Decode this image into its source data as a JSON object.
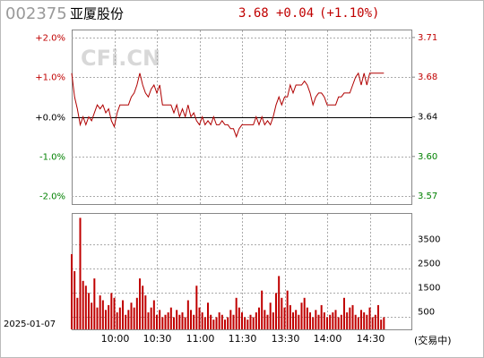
{
  "header": {
    "code": "002375",
    "name": "亚厦股份",
    "price": "3.68",
    "change": "+0.04",
    "change_pct": "(+1.10%)",
    "watermark": "CFi.CN",
    "date": "2025-01-07",
    "status": "(交易中)"
  },
  "chart_data": [
    {
      "type": "line",
      "color": "#b00000",
      "grid": true,
      "xlim": [
        0,
        120
      ],
      "xticks": [
        {
          "value": 15,
          "label": "10:00"
        },
        {
          "value": 30,
          "label": "10:30"
        },
        {
          "value": 45,
          "label": "11:00"
        },
        {
          "value": 60,
          "label": "11:30"
        },
        {
          "value": 75,
          "label": "13:30"
        },
        {
          "value": 90,
          "label": "14:00"
        },
        {
          "value": 105,
          "label": "14:30"
        }
      ],
      "ylim": [
        -2.2,
        2.2
      ],
      "yticks": [
        {
          "value": 2,
          "label": "+2.0%"
        },
        {
          "value": 1,
          "label": "+1.0%"
        },
        {
          "value": 0,
          "label": "+0.0%"
        },
        {
          "value": -1,
          "label": "-1.0%"
        },
        {
          "value": -2,
          "label": "-2.0%"
        }
      ],
      "y2lim": [
        3.5599,
        3.7201
      ],
      "y2ticks": [
        {
          "value": 3.7128,
          "label": "3.71"
        },
        {
          "value": 3.6764,
          "label": "3.68"
        },
        3.64,
        {
          "value": 3.6036,
          "label": "3.60"
        },
        {
          "value": 3.5672,
          "label": "3.57"
        }
      ],
      "values": [
        1.1,
        0.5,
        0.2,
        -0.2,
        0.0,
        -0.2,
        0.0,
        -0.1,
        0.1,
        0.3,
        0.2,
        0.3,
        0.1,
        0.2,
        -0.1,
        -0.25,
        0.1,
        0.3,
        0.3,
        0.3,
        0.3,
        0.5,
        0.6,
        0.8,
        1.1,
        0.8,
        0.6,
        0.5,
        0.7,
        0.8,
        0.6,
        0.8,
        0.3,
        0.3,
        0.3,
        0.3,
        0.1,
        0.3,
        0.0,
        0.2,
        0.0,
        0.3,
        0.0,
        0.1,
        -0.1,
        -0.2,
        0.0,
        -0.2,
        -0.1,
        -0.2,
        0.0,
        -0.2,
        -0.2,
        -0.1,
        -0.2,
        -0.2,
        -0.3,
        -0.3,
        -0.5,
        -0.3,
        -0.2,
        -0.2,
        -0.2,
        -0.2,
        -0.2,
        0.0,
        -0.2,
        0.0,
        -0.2,
        -0.1,
        -0.2,
        0.0,
        0.3,
        0.5,
        0.3,
        0.5,
        0.5,
        0.8,
        0.6,
        0.8,
        0.8,
        0.8,
        0.9,
        0.8,
        0.6,
        0.3,
        0.5,
        0.6,
        0.6,
        0.5,
        0.3,
        0.3,
        0.3,
        0.3,
        0.5,
        0.5,
        0.6,
        0.6,
        0.6,
        0.8,
        1.0,
        1.1,
        0.8,
        1.1,
        0.8,
        1.1,
        1.1,
        1.1,
        1.1,
        1.1,
        1.1
      ]
    },
    {
      "type": "bar",
      "color": "#c00000",
      "grid": true,
      "ylim": [
        0,
        4800
      ],
      "yticks": [
        3500,
        2500,
        1500,
        500
      ],
      "values": [
        3100,
        2400,
        1300,
        4600,
        2000,
        1800,
        1500,
        1100,
        2100,
        900,
        1400,
        1200,
        800,
        1000,
        1500,
        1300,
        700,
        900,
        1200,
        600,
        800,
        1100,
        900,
        1300,
        2100,
        1800,
        1400,
        700,
        900,
        1200,
        600,
        800,
        500,
        600,
        700,
        900,
        500,
        800,
        600,
        700,
        500,
        1200,
        800,
        600,
        1800,
        900,
        700,
        500,
        1100,
        600,
        400,
        500,
        700,
        600,
        400,
        500,
        800,
        600,
        1300,
        900,
        700,
        500,
        400,
        600,
        500,
        700,
        900,
        1600,
        800,
        600,
        1100,
        700,
        1500,
        2200,
        1300,
        900,
        1600,
        1000,
        700,
        800,
        600,
        1100,
        1300,
        900,
        700,
        500,
        800,
        600,
        1000,
        700,
        500,
        600,
        700,
        800,
        500,
        600,
        1300,
        700,
        900,
        1000,
        600,
        500,
        800,
        700,
        600,
        900,
        500,
        600,
        1000,
        400,
        500
      ]
    }
  ]
}
